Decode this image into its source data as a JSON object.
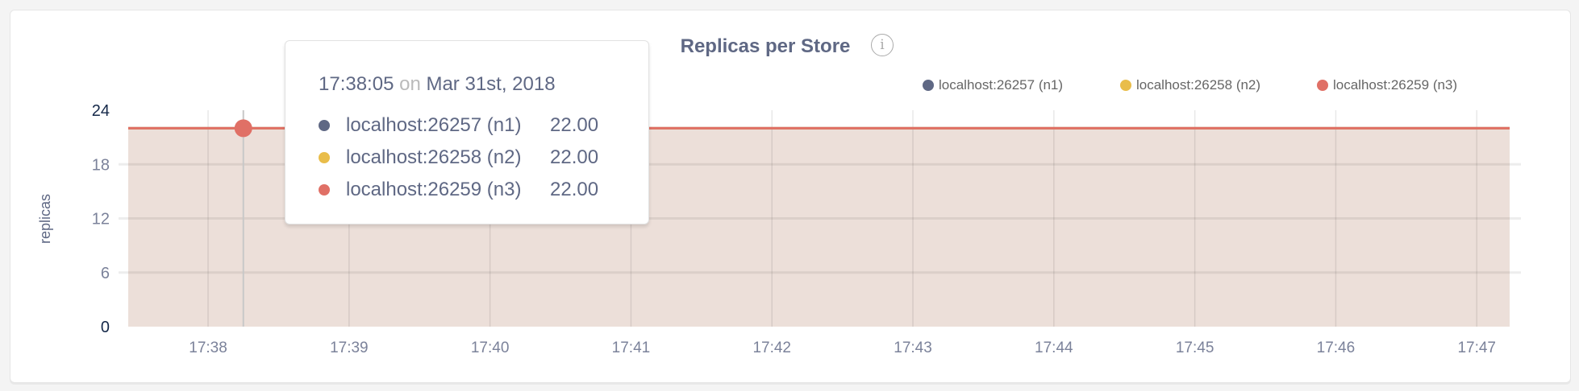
{
  "chart_data": {
    "type": "area",
    "title": "Replicas per Store",
    "ylabel": "replicas",
    "xlabel": "",
    "ylim": [
      0,
      24
    ],
    "yticks": [
      0,
      6,
      12,
      18,
      24
    ],
    "xticks": [
      "17:38",
      "17:39",
      "17:40",
      "17:41",
      "17:42",
      "17:43",
      "17:44",
      "17:45",
      "17:46",
      "17:47"
    ],
    "xrange": [
      "17:37:26",
      "17:47:14"
    ],
    "grid": true,
    "legend_position": "top-right",
    "series": [
      {
        "name": "localhost:26257 (n1)",
        "color": "#5f6884",
        "x": [
          "17:37:26",
          "17:47:14"
        ],
        "values": [
          22,
          22
        ]
      },
      {
        "name": "localhost:26258 (n2)",
        "color": "#e9bd4a",
        "x": [
          "17:37:26",
          "17:47:14"
        ],
        "values": [
          22,
          22
        ]
      },
      {
        "name": "localhost:26259 (n3)",
        "color": "#e07066",
        "x": [
          "17:37:26",
          "17:47:14"
        ],
        "values": [
          22,
          22
        ]
      }
    ],
    "fill_color": "#ecdfd9"
  },
  "info_icon": "info-icon",
  "tooltip": {
    "time": "17:38:05",
    "on": "on",
    "date": "Mar 31st, 2018",
    "hover_x": "17:38:15",
    "rows": [
      {
        "name": "localhost:26257 (n1)",
        "value": "22.00",
        "color": "#5f6884"
      },
      {
        "name": "localhost:26258 (n2)",
        "value": "22.00",
        "color": "#e9bd4a"
      },
      {
        "name": "localhost:26259 (n3)",
        "value": "22.00",
        "color": "#e07066"
      }
    ]
  }
}
